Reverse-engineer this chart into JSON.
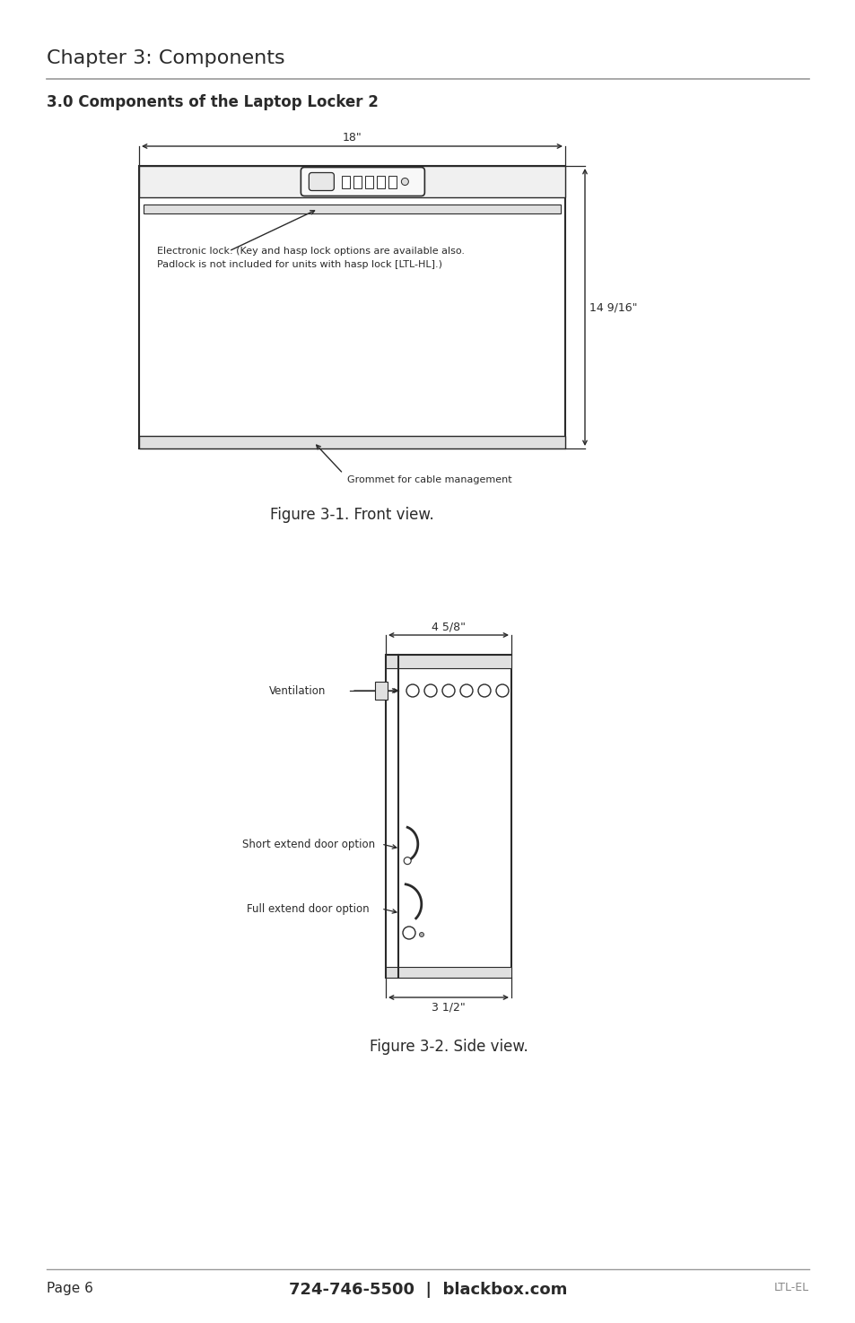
{
  "page_title": "Chapter 3: Components",
  "section_title": "3.0 Components of the Laptop Locker 2",
  "fig1_caption": "Figure 3-1. Front view.",
  "fig2_caption": "Figure 3-2. Side view.",
  "footer_left": "Page 6",
  "footer_center": "724-746-5500  |  blackbox.com",
  "footer_right": "LTL-EL",
  "front_width_label": "18\"",
  "front_height_label": "14 9/16\"",
  "front_lock_label": "Electronic lock. (Key and hasp lock options are available also.\nPadlock is not included for units with hasp lock [LTL-HL].)",
  "front_grommet_label": "Grommet for cable management",
  "side_width_label": "4 5/8\"",
  "side_bottom_label": "3 1/2\"",
  "side_vent_label": "Ventilation",
  "side_short_label": "Short extend door option",
  "side_full_label": "Full extend door option",
  "bg_color": "#ffffff",
  "text_color": "#2a2a2a",
  "line_color": "#2a2a2a",
  "dim_color": "#2a2a2a",
  "gray_color": "#888888"
}
